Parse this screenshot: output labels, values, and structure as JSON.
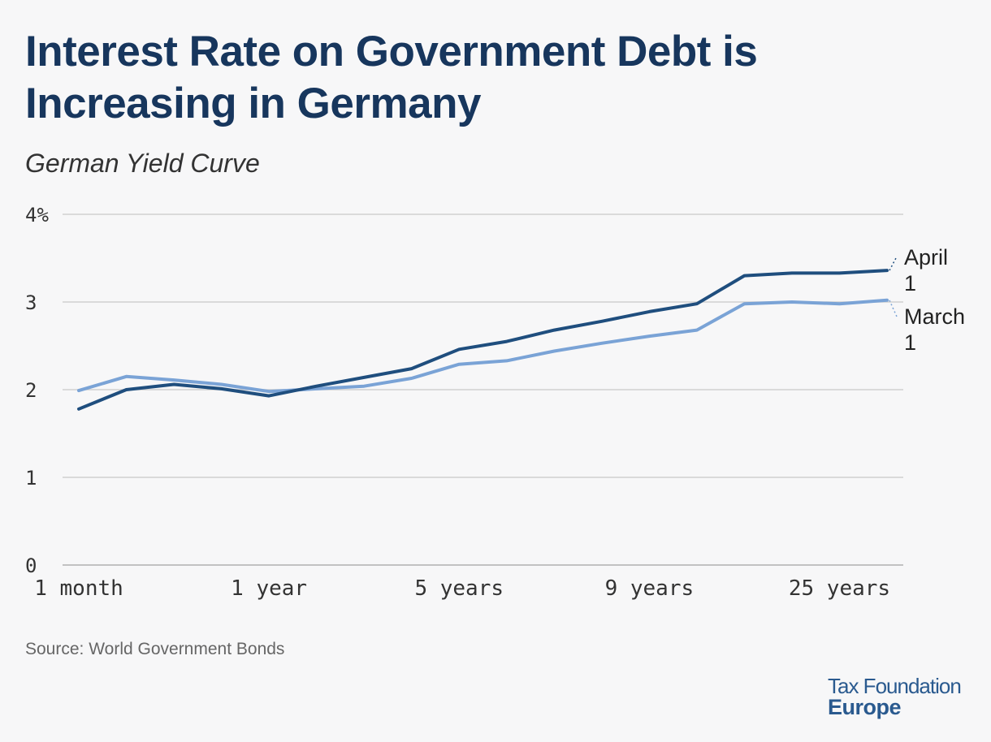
{
  "header": {
    "title": "Interest Rate on Government Debt is Increasing in Germany",
    "subtitle": "German Yield Curve"
  },
  "footer": {
    "source": "Source: World Government Bonds",
    "logo_line1": "Tax Foundation",
    "logo_line2": "Europe"
  },
  "colors": {
    "april": "#1f4e7e",
    "march": "#7aa3d6"
  },
  "chart_data": {
    "type": "line",
    "title": "Interest Rate on Government Debt is Increasing in Germany",
    "subtitle": "German Yield Curve",
    "xlabel": "",
    "ylabel": "",
    "ylim": [
      0,
      4
    ],
    "yticks": [
      0,
      1,
      2,
      3,
      4
    ],
    "ytick_labels": [
      "0",
      "1",
      "2",
      "3",
      "4%"
    ],
    "x_count": 18,
    "xtick_labels": [
      {
        "index": 0,
        "label": "1 month"
      },
      {
        "index": 4,
        "label": "1 year"
      },
      {
        "index": 8,
        "label": "5 years"
      },
      {
        "index": 12,
        "label": "9 years"
      },
      {
        "index": 16,
        "label": "25 years"
      }
    ],
    "grid": true,
    "series": [
      {
        "name": "April 1",
        "label_lines": [
          "April",
          "1"
        ],
        "color": "#1f4e7e",
        "values": [
          1.78,
          2.0,
          2.06,
          2.01,
          1.93,
          2.04,
          2.14,
          2.24,
          2.46,
          2.55,
          2.68,
          2.78,
          2.89,
          2.98,
          3.3,
          3.33,
          3.33,
          3.36
        ]
      },
      {
        "name": "March 1",
        "label_lines": [
          "March",
          "1"
        ],
        "color": "#7aa3d6",
        "values": [
          1.99,
          2.15,
          2.11,
          2.06,
          1.98,
          2.01,
          2.04,
          2.13,
          2.29,
          2.33,
          2.44,
          2.53,
          2.61,
          2.68,
          2.98,
          3.0,
          2.98,
          3.02
        ]
      }
    ]
  }
}
